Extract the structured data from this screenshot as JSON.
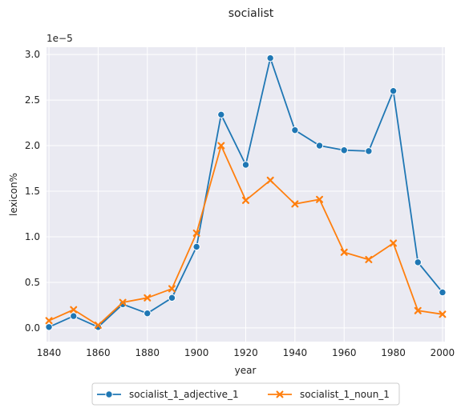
{
  "chart_data": {
    "type": "line",
    "title": "socialist",
    "xlabel": "year",
    "ylabel": "lexicon%",
    "y_offset_text": "1e−5",
    "x": [
      1840,
      1850,
      1860,
      1870,
      1880,
      1890,
      1900,
      1910,
      1920,
      1930,
      1940,
      1950,
      1960,
      1970,
      1980,
      1990,
      2000
    ],
    "xlim": [
      1839,
      2001
    ],
    "ylim": [
      -0.15,
      3.08
    ],
    "x_ticks": [
      1840,
      1860,
      1880,
      1900,
      1920,
      1940,
      1960,
      1980,
      2000
    ],
    "y_ticks": [
      0.0,
      0.5,
      1.0,
      1.5,
      2.0,
      2.5,
      3.0
    ],
    "y_tick_labels": [
      "0.0",
      "0.5",
      "1.0",
      "1.5",
      "2.0",
      "2.5",
      "3.0"
    ],
    "grid": true,
    "legend_position": "below-center",
    "series": [
      {
        "name": "socialist_1_adjective_1",
        "color": "#1f77b4",
        "marker": "circle",
        "values": [
          0.01,
          0.13,
          0.01,
          0.26,
          0.16,
          0.33,
          0.89,
          2.34,
          1.79,
          2.96,
          2.17,
          2.0,
          1.95,
          1.94,
          2.6,
          0.72,
          0.39
        ]
      },
      {
        "name": "socialist_1_noun_1",
        "color": "#ff7f0e",
        "marker": "x",
        "values": [
          0.08,
          0.2,
          0.03,
          0.28,
          0.33,
          0.43,
          1.04,
          2.0,
          1.4,
          1.62,
          1.36,
          1.41,
          0.83,
          0.75,
          0.93,
          0.19,
          0.15
        ]
      }
    ]
  }
}
